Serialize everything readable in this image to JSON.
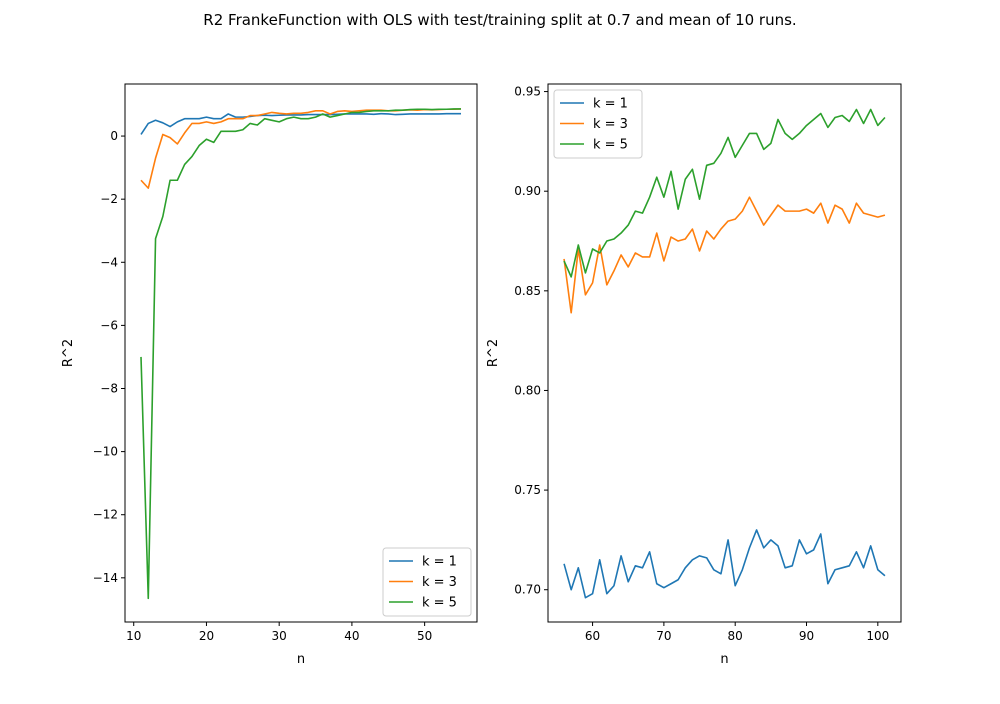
{
  "figure": {
    "title": "R2 FrankeFunction with OLS with test/training split at 0.7 and mean of 10 runs."
  },
  "colors": {
    "k1": "#1f77b4",
    "k3": "#ff7f0e",
    "k5": "#2ca02c"
  },
  "chart_data": [
    {
      "type": "line",
      "xlabel": "n",
      "ylabel": "R^2",
      "xlim": [
        8.8,
        57.2
      ],
      "ylim": [
        -15.4,
        1.65
      ],
      "xticks": [
        10,
        20,
        30,
        40,
        50
      ],
      "yticks": [
        -14,
        -12,
        -10,
        -8,
        -6,
        -4,
        -2,
        0
      ],
      "ytick_labels": [
        "−14",
        "−12",
        "−10",
        "−8",
        "−6",
        "−4",
        "−2",
        "0"
      ],
      "legend_position": "lower-right",
      "x": [
        11,
        12,
        13,
        14,
        15,
        16,
        17,
        18,
        19,
        20,
        21,
        22,
        23,
        24,
        25,
        26,
        27,
        28,
        29,
        30,
        31,
        32,
        33,
        34,
        35,
        36,
        37,
        38,
        39,
        40,
        41,
        42,
        43,
        44,
        45,
        46,
        47,
        48,
        49,
        50,
        51,
        52,
        53,
        54,
        55
      ],
      "series": [
        {
          "name": "k = 1",
          "color": "#1f77b4",
          "values": [
            0.05,
            0.4,
            0.5,
            0.42,
            0.3,
            0.45,
            0.55,
            0.55,
            0.55,
            0.6,
            0.55,
            0.55,
            0.7,
            0.6,
            0.6,
            0.62,
            0.65,
            0.66,
            0.65,
            0.66,
            0.67,
            0.67,
            0.67,
            0.68,
            0.68,
            0.68,
            0.68,
            0.69,
            0.7,
            0.7,
            0.7,
            0.7,
            0.69,
            0.71,
            0.7,
            0.68,
            0.69,
            0.7,
            0.7,
            0.7,
            0.7,
            0.7,
            0.71,
            0.71,
            0.71
          ]
        },
        {
          "name": "k = 3",
          "color": "#ff7f0e",
          "values": [
            -1.4,
            -1.65,
            -0.7,
            0.05,
            -0.05,
            -0.25,
            0.1,
            0.4,
            0.4,
            0.45,
            0.4,
            0.45,
            0.55,
            0.55,
            0.55,
            0.65,
            0.65,
            0.7,
            0.75,
            0.72,
            0.7,
            0.72,
            0.72,
            0.75,
            0.8,
            0.8,
            0.7,
            0.78,
            0.8,
            0.78,
            0.8,
            0.82,
            0.82,
            0.82,
            0.8,
            0.8,
            0.82,
            0.83,
            0.82,
            0.84,
            0.83,
            0.84,
            0.85,
            0.85,
            0.86
          ]
        },
        {
          "name": "k = 5",
          "color": "#2ca02c",
          "values": [
            -7.0,
            -14.65,
            -3.25,
            -2.55,
            -1.4,
            -1.4,
            -0.9,
            -0.65,
            -0.3,
            -0.1,
            -0.2,
            0.15,
            0.15,
            0.15,
            0.2,
            0.4,
            0.35,
            0.55,
            0.5,
            0.45,
            0.55,
            0.6,
            0.55,
            0.55,
            0.6,
            0.7,
            0.6,
            0.65,
            0.7,
            0.75,
            0.75,
            0.78,
            0.8,
            0.8,
            0.8,
            0.82,
            0.82,
            0.84,
            0.85,
            0.85,
            0.84,
            0.85,
            0.85,
            0.86,
            0.86
          ]
        }
      ]
    },
    {
      "type": "line",
      "xlabel": "n",
      "ylabel": "R^2",
      "xlim": [
        53.75,
        103.25
      ],
      "ylim": [
        0.6838,
        0.9538
      ],
      "xticks": [
        60,
        70,
        80,
        90,
        100
      ],
      "yticks": [
        0.7,
        0.75,
        0.8,
        0.85,
        0.9,
        0.95
      ],
      "ytick_labels": [
        "0.70",
        "0.75",
        "0.80",
        "0.85",
        "0.90",
        "0.95"
      ],
      "legend_position": "upper-left",
      "x": [
        56,
        57,
        58,
        59,
        60,
        61,
        62,
        63,
        64,
        65,
        66,
        67,
        68,
        69,
        70,
        71,
        72,
        73,
        74,
        75,
        76,
        77,
        78,
        79,
        80,
        81,
        82,
        83,
        84,
        85,
        86,
        87,
        88,
        89,
        90,
        91,
        92,
        93,
        94,
        95,
        96,
        97,
        98,
        99,
        100,
        101
      ],
      "series": [
        {
          "name": "k = 1",
          "color": "#1f77b4",
          "values": [
            0.713,
            0.7,
            0.711,
            0.696,
            0.698,
            0.715,
            0.698,
            0.702,
            0.717,
            0.704,
            0.712,
            0.711,
            0.719,
            0.703,
            0.701,
            0.703,
            0.705,
            0.711,
            0.715,
            0.717,
            0.716,
            0.71,
            0.708,
            0.725,
            0.702,
            0.71,
            0.721,
            0.73,
            0.721,
            0.725,
            0.722,
            0.711,
            0.712,
            0.725,
            0.718,
            0.72,
            0.728,
            0.703,
            0.71,
            0.711,
            0.712,
            0.719,
            0.711,
            0.722,
            0.71,
            0.707
          ]
        },
        {
          "name": "k = 3",
          "color": "#ff7f0e",
          "values": [
            0.866,
            0.839,
            0.871,
            0.848,
            0.854,
            0.873,
            0.853,
            0.86,
            0.868,
            0.862,
            0.869,
            0.867,
            0.867,
            0.879,
            0.865,
            0.877,
            0.875,
            0.876,
            0.881,
            0.87,
            0.88,
            0.876,
            0.881,
            0.885,
            0.886,
            0.89,
            0.897,
            0.89,
            0.883,
            0.888,
            0.893,
            0.89,
            0.89,
            0.89,
            0.891,
            0.889,
            0.894,
            0.884,
            0.893,
            0.891,
            0.884,
            0.894,
            0.889,
            0.888,
            0.887,
            0.888
          ]
        },
        {
          "name": "k = 5",
          "color": "#2ca02c",
          "values": [
            0.865,
            0.857,
            0.873,
            0.859,
            0.871,
            0.869,
            0.875,
            0.876,
            0.879,
            0.883,
            0.89,
            0.889,
            0.897,
            0.907,
            0.897,
            0.91,
            0.891,
            0.906,
            0.911,
            0.896,
            0.913,
            0.914,
            0.919,
            0.927,
            0.917,
            0.923,
            0.929,
            0.929,
            0.921,
            0.924,
            0.936,
            0.929,
            0.926,
            0.929,
            0.933,
            0.936,
            0.939,
            0.932,
            0.937,
            0.938,
            0.935,
            0.941,
            0.934,
            0.941,
            0.933,
            0.937
          ]
        }
      ]
    }
  ]
}
